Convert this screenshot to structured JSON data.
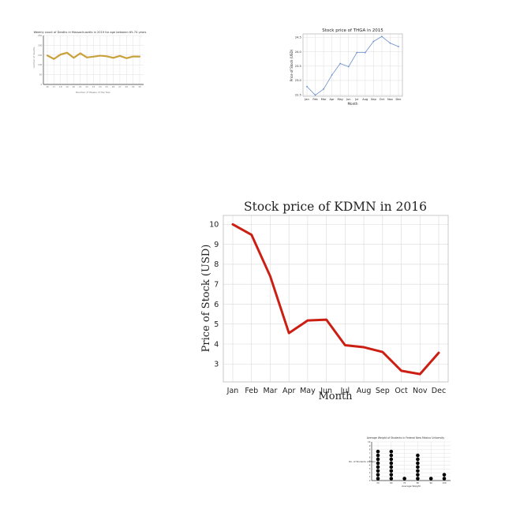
{
  "chart_data": [
    {
      "type": "line",
      "title": "Weekly count of Deaths in Massachusetts in 2019 for age between 65-74 years",
      "xlabel": "Number of Weeks of the Year",
      "ylabel": "number of deaths",
      "categories": [
        "16",
        "17",
        "18",
        "19",
        "20",
        "21",
        "22",
        "23",
        "24",
        "25",
        "26",
        "27",
        "28",
        "29",
        "30"
      ],
      "yticks": [
        "0",
        "50",
        "100",
        "150",
        "200",
        "250"
      ],
      "ylim": [
        0,
        250
      ],
      "grid": true,
      "color": "#c9a13b",
      "series": [
        {
          "values": [
            148,
            130,
            153,
            162,
            136,
            159,
            138,
            142,
            147,
            144,
            136,
            146,
            134,
            143,
            142
          ]
        }
      ]
    },
    {
      "type": "line",
      "title": "Stock price of THGA in 2015",
      "xlabel": "Month",
      "ylabel": "Price of Stock (USD)",
      "categories": [
        "Jan",
        "Feb",
        "Mar",
        "Apr",
        "May",
        "Jun",
        "Jul",
        "Aug",
        "Sep",
        "Oct",
        "Nov",
        "Dec"
      ],
      "yticks": [
        "22.5",
        "23.0",
        "23.5",
        "24.0",
        "24.5"
      ],
      "ylim": [
        22.45,
        24.62
      ],
      "grid": true,
      "color": "#6a8ec9",
      "series": [
        {
          "values": [
            22.79,
            22.49,
            22.7,
            23.19,
            23.59,
            23.48,
            23.97,
            23.97,
            24.36,
            24.53,
            24.3,
            24.18
          ]
        }
      ]
    },
    {
      "type": "line",
      "title": "Stock price of KDMN in 2016",
      "xlabel": "Month",
      "ylabel": "Price of Stock (USD)",
      "categories": [
        "Jan",
        "Feb",
        "Mar",
        "Apr",
        "May",
        "Jun",
        "Jul",
        "Aug",
        "Sep",
        "Oct",
        "Nov",
        "Dec"
      ],
      "yticks": [
        "3",
        "4",
        "5",
        "6",
        "7",
        "8",
        "9",
        "10"
      ],
      "ylim": [
        2.1,
        10.45
      ],
      "grid": true,
      "color": "#cc1f14",
      "series": [
        {
          "values": [
            10.0,
            9.48,
            7.4,
            4.55,
            5.18,
            5.22,
            3.94,
            3.84,
            3.6,
            2.66,
            2.49,
            3.56
          ]
        }
      ]
    },
    {
      "type": "scatter",
      "title": "Average Weight of Students in Federal New Mexico University",
      "xlabel": "Average Weight",
      "ylabel": "No. of Students (UWBN)",
      "categories": [
        "50",
        "60",
        "70",
        "80",
        "90",
        "100"
      ],
      "yticks": [
        "0",
        "1",
        "2",
        "3",
        "4",
        "5",
        "6",
        "7",
        "8",
        "9",
        "10"
      ],
      "ylim": [
        0,
        10
      ],
      "grid": true,
      "color": "#000000",
      "counts": [
        8,
        8,
        1,
        7,
        1,
        2
      ]
    }
  ]
}
